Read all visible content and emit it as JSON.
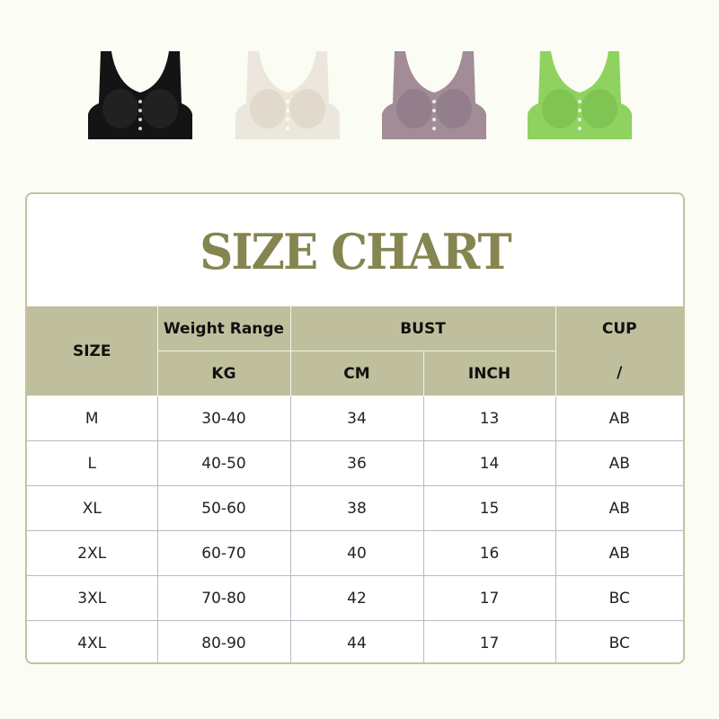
{
  "products": [
    {
      "color": "#141414",
      "accent": "#2a2a2a"
    },
    {
      "color": "#ece7dc",
      "accent": "#d8d1c2"
    },
    {
      "color": "#a18c98",
      "accent": "#8a7683"
    },
    {
      "color": "#8fd260",
      "accent": "#77bb4c"
    }
  ],
  "title": "SIZE CHART",
  "header": {
    "size": "SIZE",
    "weight_range": "Weight Range",
    "kg": "KG",
    "bust": "BUST",
    "cm": "CM",
    "inch": "INCH",
    "cup": "CUP",
    "cup_sub": "/"
  },
  "rows": [
    {
      "size": "M",
      "kg": "30-40",
      "cm": "34",
      "inch": "13",
      "cup": "AB"
    },
    {
      "size": "L",
      "kg": "40-50",
      "cm": "36",
      "inch": "14",
      "cup": "AB"
    },
    {
      "size": "XL",
      "kg": "50-60",
      "cm": "38",
      "inch": "15",
      "cup": "AB"
    },
    {
      "size": "2XL",
      "kg": "60-70",
      "cm": "40",
      "inch": "16",
      "cup": "AB"
    },
    {
      "size": "3XL",
      "kg": "70-80",
      "cm": "42",
      "inch": "17",
      "cup": "BC"
    },
    {
      "size": "4XL",
      "kg": "80-90",
      "cm": "44",
      "inch": "17",
      "cup": "BC"
    }
  ],
  "colors": {
    "accent": "#85854f",
    "header_bg": "#bfbf9d",
    "border": "#c3c3a0"
  }
}
